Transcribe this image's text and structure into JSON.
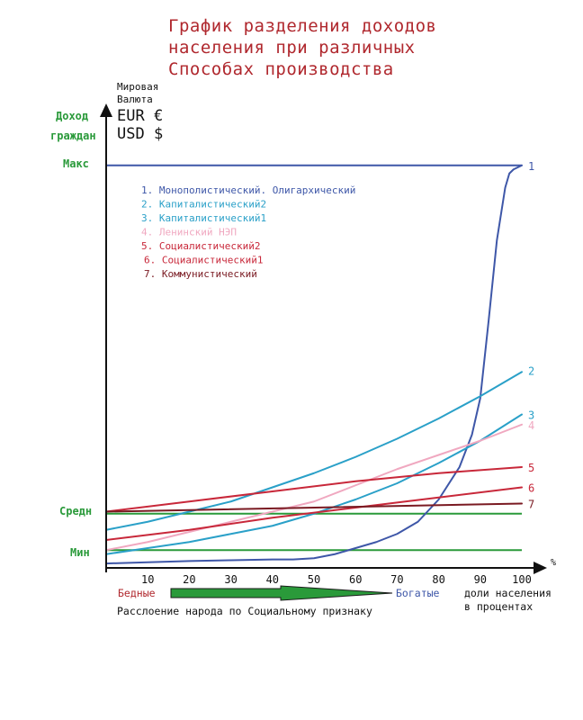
{
  "title": {
    "line1": "График разделения доходов",
    "line2": "населения при    различных",
    "line3": "Способах      производства"
  },
  "y_axis": {
    "label_line1": "Доход",
    "label_line2": "граждан",
    "currency_line1": "Мировая",
    "currency_line2": "Валюта",
    "currency_eur": "EUR €",
    "currency_usd": "USD $",
    "level_max": "Макс",
    "level_mid": "Средн",
    "level_min": "Мин"
  },
  "x_axis": {
    "unit": "%",
    "label_line1": "доли населения",
    "label_line2": "в процентах",
    "poor": "Бедные",
    "rich": "Богатые",
    "stratification": "Расслоение народа по Социальному признаку"
  },
  "chart_data": {
    "type": "line",
    "xlim": [
      0,
      100
    ],
    "ylim": [
      0,
      100
    ],
    "x_ticks": [
      10,
      20,
      30,
      40,
      50,
      60,
      70,
      80,
      90,
      100
    ],
    "reference_lines": [
      {
        "label": "Макс",
        "value": 98.5,
        "color": "#3e57a8"
      },
      {
        "label": "Средн",
        "value": 12.5,
        "color": "#2a9a3a"
      },
      {
        "label": "Мин",
        "value": 3.5,
        "color": "#2a9a3a"
      }
    ],
    "series": [
      {
        "number": "1",
        "name": "Монополистический. Олигархический",
        "color": "#3e57a8",
        "x": [
          0,
          10,
          20,
          30,
          40,
          45,
          50,
          55,
          60,
          65,
          70,
          75,
          80,
          85,
          88,
          90,
          92,
          94,
          96,
          97,
          98,
          99,
          100
        ],
        "y": [
          0.2,
          0.5,
          0.8,
          1.0,
          1.2,
          1.2,
          1.5,
          2.5,
          4.0,
          5.5,
          7.5,
          10.5,
          16.0,
          24.0,
          32.0,
          41.0,
          60.0,
          80.0,
          93.0,
          96.5,
          97.5,
          98.0,
          98.5
        ]
      },
      {
        "number": "2",
        "name": "Капиталистический2",
        "color": "#2aa0c8",
        "x": [
          0,
          10,
          20,
          30,
          40,
          50,
          60,
          70,
          80,
          90,
          100
        ],
        "y": [
          8.5,
          10.5,
          13.0,
          15.5,
          19.0,
          22.5,
          26.5,
          31.0,
          36.0,
          41.5,
          47.5
        ]
      },
      {
        "number": "3",
        "name": "Капиталистический1",
        "color": "#2aa0c8",
        "x": [
          0,
          10,
          20,
          30,
          40,
          50,
          60,
          70,
          80,
          90,
          100
        ],
        "y": [
          2.5,
          4.0,
          5.5,
          7.5,
          9.5,
          12.5,
          16.0,
          20.0,
          25.0,
          30.5,
          37.0
        ]
      },
      {
        "number": "4",
        "name": "Ленинский НЭП",
        "color": "#f0a8c0",
        "x": [
          0,
          10,
          20,
          30,
          40,
          50,
          60,
          70,
          80,
          90,
          100
        ],
        "y": [
          3.5,
          5.5,
          8.0,
          10.5,
          13.0,
          15.5,
          19.5,
          23.5,
          27.0,
          30.5,
          34.5
        ]
      },
      {
        "number": "5",
        "name": "Социалистический2",
        "color": "#c8283a",
        "x": [
          0,
          20,
          40,
          60,
          80,
          100
        ],
        "y": [
          13.0,
          15.5,
          18.0,
          20.5,
          22.5,
          24.0
        ]
      },
      {
        "number": "6",
        "name": "Социалистический1",
        "color": "#c8283a",
        "x": [
          0,
          20,
          40,
          60,
          80,
          100
        ],
        "y": [
          6.0,
          8.5,
          11.5,
          14.0,
          16.5,
          19.0
        ]
      },
      {
        "number": "7",
        "name": "Коммунистический",
        "color": "#7a1a22",
        "x": [
          0,
          100
        ],
        "y": [
          13.0,
          15.0
        ]
      }
    ]
  },
  "arrow": {
    "fill": "#2a9a3a",
    "stroke": "#1a1a1a"
  }
}
